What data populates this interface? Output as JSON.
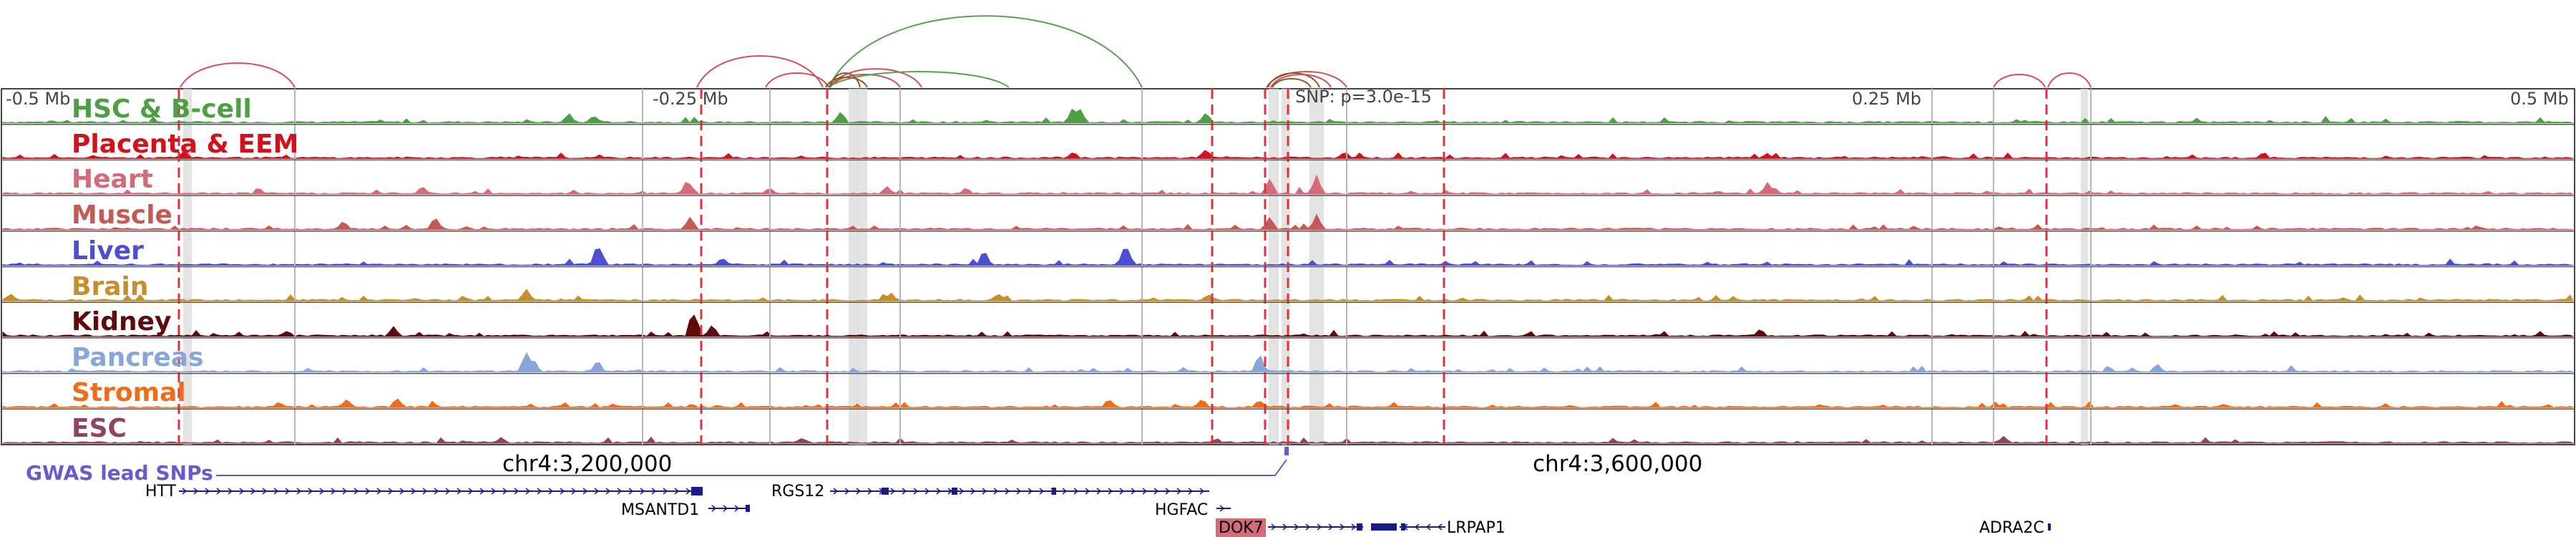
{
  "ruler": {
    "ticks": [
      "-0.5 Mb",
      "-0.25 Mb",
      "0.25 Mb",
      "0.5 Mb"
    ],
    "snp_label": "SNP: p=3.0e-15"
  },
  "tracks": [
    {
      "name": "HSC & B-cell",
      "color": "#4d9e45"
    },
    {
      "name": "Placenta & EEM",
      "color": "#d2111a"
    },
    {
      "name": "Heart",
      "color": "#d46b7a"
    },
    {
      "name": "Muscle",
      "color": "#c45a55"
    },
    {
      "name": "Liver",
      "color": "#4d4fd1"
    },
    {
      "name": "Brain",
      "color": "#c48f2c"
    },
    {
      "name": "Kidney",
      "color": "#5f0b0b"
    },
    {
      "name": "Pancreas",
      "color": "#88a6d8"
    },
    {
      "name": "Stromal",
      "color": "#ef6c18"
    },
    {
      "name": "ESC",
      "color": "#8e4563"
    }
  ],
  "coordinates": [
    "chr4:3,200,000",
    "chr4:3,600,000"
  ],
  "gwas_label": "GWAS lead SNPs",
  "gwas_color": "#6a5acd",
  "genes": [
    "HTT",
    "MSANTD1",
    "RGS12",
    "HGFAC",
    "DOK7",
    "LRPAP1",
    "ADRA2C"
  ],
  "highlight_gene": "DOK7",
  "highlight_color": "#d46b7a",
  "arc_colors": {
    "red": "#d2505a",
    "green": "#5aa050",
    "brown": "#8b5a2b"
  }
}
